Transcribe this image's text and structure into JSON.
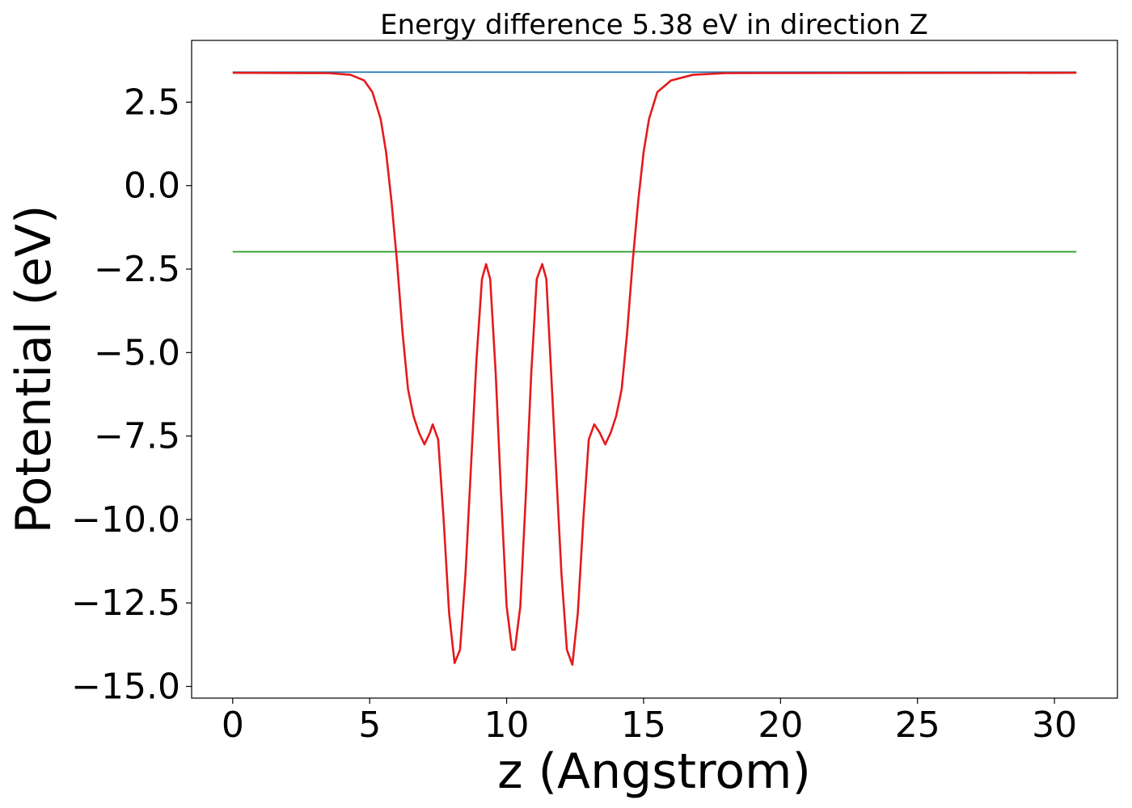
{
  "chart_data": {
    "type": "line",
    "title": "Energy difference 5.38 eV in direction Z",
    "xlabel": "z (Angstrom)",
    "ylabel": "Potential (eV)",
    "xlim": [
      -1.5,
      32.3
    ],
    "ylim": [
      -15.35,
      4.35
    ],
    "xticks": [
      0,
      5,
      10,
      15,
      20,
      25,
      30
    ],
    "xtick_labels": [
      "0",
      "5",
      "10",
      "15",
      "20",
      "25",
      "30"
    ],
    "yticks": [
      2.5,
      0.0,
      -2.5,
      -5.0,
      -7.5,
      -10.0,
      -12.5,
      -15.0
    ],
    "ytick_labels": [
      "2.5",
      "0.0",
      "−2.5",
      "−5.0",
      "−7.5",
      "−10.0",
      "−12.5",
      "−15.0"
    ],
    "grid": false,
    "series": [
      {
        "color": "#1f77b4",
        "x": [
          0,
          30.8
        ],
        "y": [
          3.4,
          3.4
        ]
      },
      {
        "color": "#2ca02c",
        "x": [
          0,
          30.8
        ],
        "y": [
          -1.98,
          -1.98
        ]
      },
      {
        "color": "#e41a1c",
        "x": [
          0,
          3.5,
          4.3,
          4.8,
          5.1,
          5.4,
          5.6,
          5.8,
          6.0,
          6.2,
          6.4,
          6.6,
          6.8,
          7.0,
          7.2,
          7.3,
          7.5,
          7.7,
          7.9,
          8.1,
          8.3,
          8.5,
          8.7,
          8.9,
          9.1,
          9.25,
          9.4,
          9.6,
          9.8,
          10.0,
          10.2,
          10.3,
          10.5,
          10.7,
          10.9,
          11.1,
          11.3,
          11.45,
          11.6,
          11.8,
          12.0,
          12.2,
          12.4,
          12.6,
          12.8,
          13.0,
          13.2,
          13.4,
          13.6,
          13.8,
          14.0,
          14.2,
          14.4,
          14.6,
          14.8,
          15.0,
          15.2,
          15.5,
          16.0,
          16.8,
          18.0,
          30.8
        ],
        "y": [
          3.38,
          3.37,
          3.32,
          3.15,
          2.8,
          2.0,
          1.0,
          -0.5,
          -2.3,
          -4.4,
          -6.1,
          -6.9,
          -7.4,
          -7.75,
          -7.4,
          -7.15,
          -7.6,
          -10.0,
          -12.8,
          -14.3,
          -13.9,
          -11.6,
          -8.4,
          -5.2,
          -2.8,
          -2.35,
          -2.8,
          -5.6,
          -9.3,
          -12.6,
          -13.9,
          -13.9,
          -12.6,
          -9.3,
          -5.6,
          -2.8,
          -2.35,
          -2.8,
          -5.2,
          -8.4,
          -11.6,
          -13.9,
          -14.35,
          -12.8,
          -10.0,
          -7.6,
          -7.15,
          -7.4,
          -7.75,
          -7.4,
          -6.9,
          -6.1,
          -4.4,
          -2.3,
          -0.5,
          1.0,
          2.0,
          2.8,
          3.15,
          3.32,
          3.37,
          3.38
        ]
      }
    ]
  }
}
